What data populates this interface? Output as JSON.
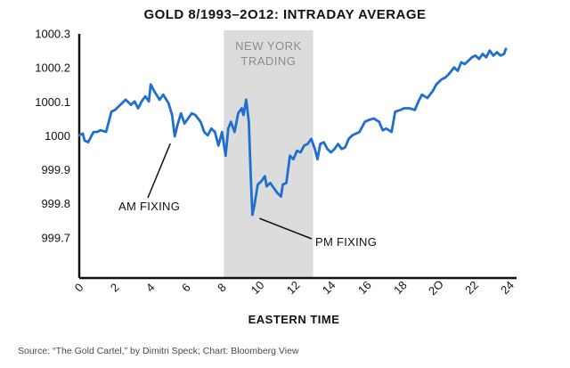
{
  "chart_data": {
    "type": "line",
    "title": "GOLD 8/1993–2O12: INTRADAY AVERAGE",
    "xlabel": "EASTERN TIME",
    "ylabel": "",
    "x_ticks": [
      "0",
      "2",
      "4",
      "6",
      "8",
      "10",
      "12",
      "14",
      "16",
      "18",
      "2O",
      "22",
      "24"
    ],
    "y_ticks": [
      "999.7",
      "999.8",
      "999.9",
      "1000",
      "1000.1",
      "1000.2",
      "1000.3"
    ],
    "xlim": [
      0,
      24.5
    ],
    "ylim": [
      999.58,
      1000.32
    ],
    "grid": false,
    "shaded_region": {
      "label": "NEW YORK TRADING",
      "label_lines": [
        "NEW YORK",
        "TRADING"
      ],
      "x_start": 8.1,
      "x_end": 13.1
    },
    "annotations": [
      {
        "text": "AM FIXING",
        "x": 5.3,
        "y": 999.997
      },
      {
        "text": "PM FIXING",
        "x": 9.8,
        "y": 999.766
      }
    ],
    "series": [
      {
        "color": "#1f6fd0",
        "x": [
          0,
          0.2,
          0.3,
          0.5,
          0.8,
          1.0,
          1.2,
          1.5,
          1.8,
          2.0,
          2.3,
          2.6,
          2.9,
          3.1,
          3.3,
          3.5,
          3.7,
          3.9,
          4.0,
          4.2,
          4.5,
          4.7,
          5.0,
          5.2,
          5.35,
          5.5,
          5.7,
          5.9,
          6.1,
          6.3,
          6.5,
          6.8,
          7.0,
          7.2,
          7.4,
          7.6,
          7.8,
          8.0,
          8.2,
          8.35,
          8.5,
          8.7,
          8.9,
          9.1,
          9.2,
          9.35,
          9.5,
          9.6,
          9.7,
          9.8,
          10.0,
          10.2,
          10.4,
          10.5,
          10.7,
          10.9,
          11.1,
          11.3,
          11.4,
          11.6,
          11.8,
          12.0,
          12.2,
          12.4,
          12.6,
          12.8,
          13.0,
          13.2,
          13.35,
          13.5,
          13.7,
          13.9,
          14.1,
          14.3,
          14.5,
          14.7,
          14.9,
          15.1,
          15.3,
          15.5,
          15.7,
          16.0,
          16.2,
          16.5,
          16.8,
          17.0,
          17.2,
          17.5,
          17.7,
          18.0,
          18.2,
          18.5,
          18.8,
          19.0,
          19.2,
          19.5,
          19.8,
          20.0,
          20.3,
          20.5,
          20.7,
          21.0,
          21.2,
          21.4,
          21.6,
          21.8,
          22.0,
          22.2,
          22.4,
          22.6,
          22.8,
          23.0,
          23.2,
          23.4,
          23.6,
          23.8,
          23.9
        ],
        "values": [
          1000.0,
          1000.005,
          999.985,
          999.98,
          1000.01,
          1000.01,
          1000.015,
          1000.01,
          1000.07,
          1000.075,
          1000.09,
          1000.105,
          1000.09,
          1000.1,
          1000.08,
          1000.1,
          1000.115,
          1000.1,
          1000.15,
          1000.13,
          1000.105,
          1000.12,
          1000.095,
          1000.06,
          999.997,
          1000.03,
          1000.065,
          1000.035,
          1000.05,
          1000.065,
          1000.06,
          1000.04,
          1000.01,
          1000.0,
          1000.02,
          1000.01,
          999.97,
          1000.01,
          999.94,
          1000.02,
          1000.04,
          1000.01,
          1000.065,
          1000.08,
          1000.06,
          1000.105,
          1000.04,
          999.89,
          999.766,
          999.79,
          999.855,
          999.865,
          999.88,
          999.85,
          999.86,
          999.845,
          999.83,
          999.82,
          999.855,
          999.86,
          999.94,
          999.93,
          999.955,
          999.95,
          999.97,
          999.975,
          999.99,
          999.96,
          999.93,
          999.975,
          999.98,
          999.96,
          999.95,
          999.96,
          999.975,
          999.96,
          999.965,
          999.99,
          1000.0,
          1000.005,
          1000.01,
          1000.04,
          1000.045,
          1000.05,
          1000.04,
          1000.015,
          1000.02,
          1000.01,
          1000.07,
          1000.075,
          1000.08,
          1000.08,
          1000.075,
          1000.1,
          1000.12,
          1000.11,
          1000.13,
          1000.15,
          1000.165,
          1000.17,
          1000.18,
          1000.2,
          1000.19,
          1000.215,
          1000.21,
          1000.22,
          1000.23,
          1000.235,
          1000.225,
          1000.24,
          1000.23,
          1000.25,
          1000.235,
          1000.245,
          1000.235,
          1000.24,
          1000.255
        ]
      }
    ]
  },
  "source": "Source: “The Gold Cartel,” by Dimitri Speck; Chart: Bloomberg View"
}
